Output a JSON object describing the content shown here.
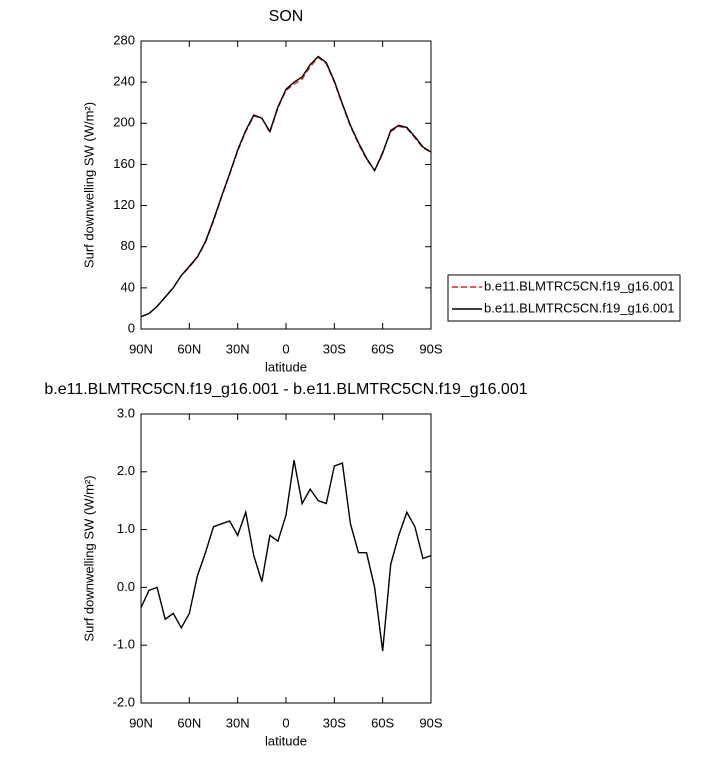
{
  "chart_data": [
    {
      "type": "line",
      "title": "SON",
      "xlabel": "latitude",
      "ylabel": "Surf downwelling SW (W/m²)",
      "x": [
        90,
        85,
        80,
        75,
        70,
        65,
        60,
        55,
        50,
        45,
        40,
        35,
        30,
        25,
        20,
        15,
        10,
        5,
        0,
        -5,
        -10,
        -15,
        -20,
        -25,
        -30,
        -35,
        -40,
        -45,
        -50,
        -55,
        -60,
        -65,
        -70,
        -75,
        -80,
        -85,
        -90
      ],
      "series": [
        {
          "name": "b.e11.BLMTRC5CN.f19_g16.001",
          "color": "#d62728",
          "dash": true,
          "values": [
            12,
            15,
            22,
            31,
            40,
            52,
            60,
            70,
            84,
            105,
            128,
            150,
            173,
            192,
            207,
            205,
            191,
            215,
            232,
            238,
            243,
            255,
            264,
            258,
            240,
            218,
            197,
            180,
            165,
            154,
            172,
            192,
            197,
            195,
            186,
            176,
            172
          ]
        },
        {
          "name": "b.e11.BLMTRC5CN.f19_g16.001",
          "color": "#000000",
          "dash": false,
          "values": [
            12,
            15,
            22,
            31,
            40,
            52,
            61,
            70,
            85,
            106,
            129,
            151,
            174,
            193,
            208,
            205,
            192,
            216,
            233,
            240,
            245,
            257,
            265,
            259,
            241,
            219,
            198,
            181,
            166,
            154,
            171,
            193,
            198,
            196,
            187,
            177,
            172
          ]
        }
      ],
      "xlim": [
        90,
        -90
      ],
      "xticks": [
        {
          "value": 90,
          "label": "90N"
        },
        {
          "value": 60,
          "label": "60N"
        },
        {
          "value": 30,
          "label": "30N"
        },
        0,
        {
          "value": -30,
          "label": "30S"
        },
        {
          "value": -60,
          "label": "60S"
        },
        {
          "value": -90,
          "label": "90S"
        }
      ],
      "ylim": [
        0,
        280
      ],
      "yticks": [
        0,
        40,
        80,
        120,
        160,
        200,
        240,
        280
      ],
      "legend": "right"
    },
    {
      "type": "line",
      "title": "b.e11.BLMTRC5CN.f19_g16.001 - b.e11.BLMTRC5CN.f19_g16.001",
      "xlabel": "latitude",
      "ylabel": "Surf downwelling SW (W/m²)",
      "x": [
        90,
        85,
        80,
        75,
        70,
        65,
        60,
        55,
        50,
        45,
        40,
        35,
        30,
        25,
        20,
        15,
        10,
        5,
        0,
        -5,
        -10,
        -15,
        -20,
        -25,
        -30,
        -35,
        -40,
        -45,
        -50,
        -55,
        -60,
        -65,
        -70,
        -75,
        -80,
        -85,
        -90
      ],
      "values": [
        -0.35,
        -0.05,
        0.0,
        -0.55,
        -0.45,
        -0.7,
        -0.45,
        0.2,
        0.6,
        1.05,
        1.1,
        1.15,
        0.9,
        1.3,
        0.55,
        0.1,
        0.9,
        0.8,
        1.25,
        2.2,
        1.45,
        1.7,
        1.5,
        1.45,
        2.1,
        2.15,
        1.1,
        0.6,
        0.6,
        0.0,
        -1.1,
        0.4,
        0.9,
        1.3,
        1.05,
        0.5,
        0.55
      ],
      "color": "#000000",
      "xlim": [
        90,
        -90
      ],
      "xticks": [
        {
          "value": 90,
          "label": "90N"
        },
        {
          "value": 60,
          "label": "60N"
        },
        {
          "value": 30,
          "label": "30N"
        },
        0,
        {
          "value": -30,
          "label": "30S"
        },
        {
          "value": -60,
          "label": "60S"
        },
        {
          "value": -90,
          "label": "90S"
        }
      ],
      "ylim": [
        -2,
        3
      ],
      "yticks": [
        {
          "value": -2,
          "label": "-2.0"
        },
        {
          "value": -1,
          "label": "-1.0"
        },
        {
          "value": 0,
          "label": "0.0"
        },
        {
          "value": 1,
          "label": "1.0"
        },
        {
          "value": 2,
          "label": "2.0"
        },
        {
          "value": 3,
          "label": "3.0"
        }
      ]
    }
  ]
}
